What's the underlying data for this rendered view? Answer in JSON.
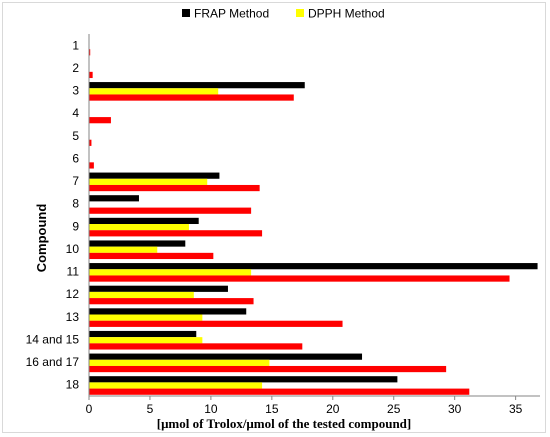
{
  "chart_data": {
    "type": "bar",
    "orientation": "horizontal",
    "title": "",
    "xlabel": "[μmol of Trolox/μmol of the tested compound]",
    "ylabel": "Compound",
    "xlim": [
      0,
      37
    ],
    "xticks": [
      0,
      5,
      10,
      15,
      20,
      25,
      30,
      35
    ],
    "grid": false,
    "legend_position": "top",
    "categories": [
      "1",
      "2",
      "3",
      "4",
      "5",
      "6",
      "7",
      "8",
      "9",
      "10",
      "11",
      "12",
      "13",
      "14 and 15",
      "16 and 17",
      "18"
    ],
    "series": [
      {
        "name": "FRAP Method",
        "color": "#000000",
        "values": [
          0,
          0,
          17.7,
          0,
          0,
          0,
          10.7,
          4.1,
          9.0,
          7.9,
          36.8,
          11.4,
          12.9,
          8.8,
          22.4,
          25.3
        ]
      },
      {
        "name": "DPPH Method",
        "color": "#ffff00",
        "values": [
          0,
          0,
          10.6,
          0,
          0,
          0,
          9.7,
          0,
          8.2,
          5.6,
          13.3,
          8.6,
          9.3,
          9.3,
          14.8,
          14.2
        ]
      },
      {
        "name": "",
        "color": "#ff0000",
        "values": [
          0.1,
          0.3,
          16.8,
          1.8,
          0.2,
          0.4,
          14.0,
          13.3,
          14.2,
          10.2,
          34.5,
          13.5,
          20.8,
          17.5,
          29.3,
          31.2
        ]
      }
    ]
  }
}
